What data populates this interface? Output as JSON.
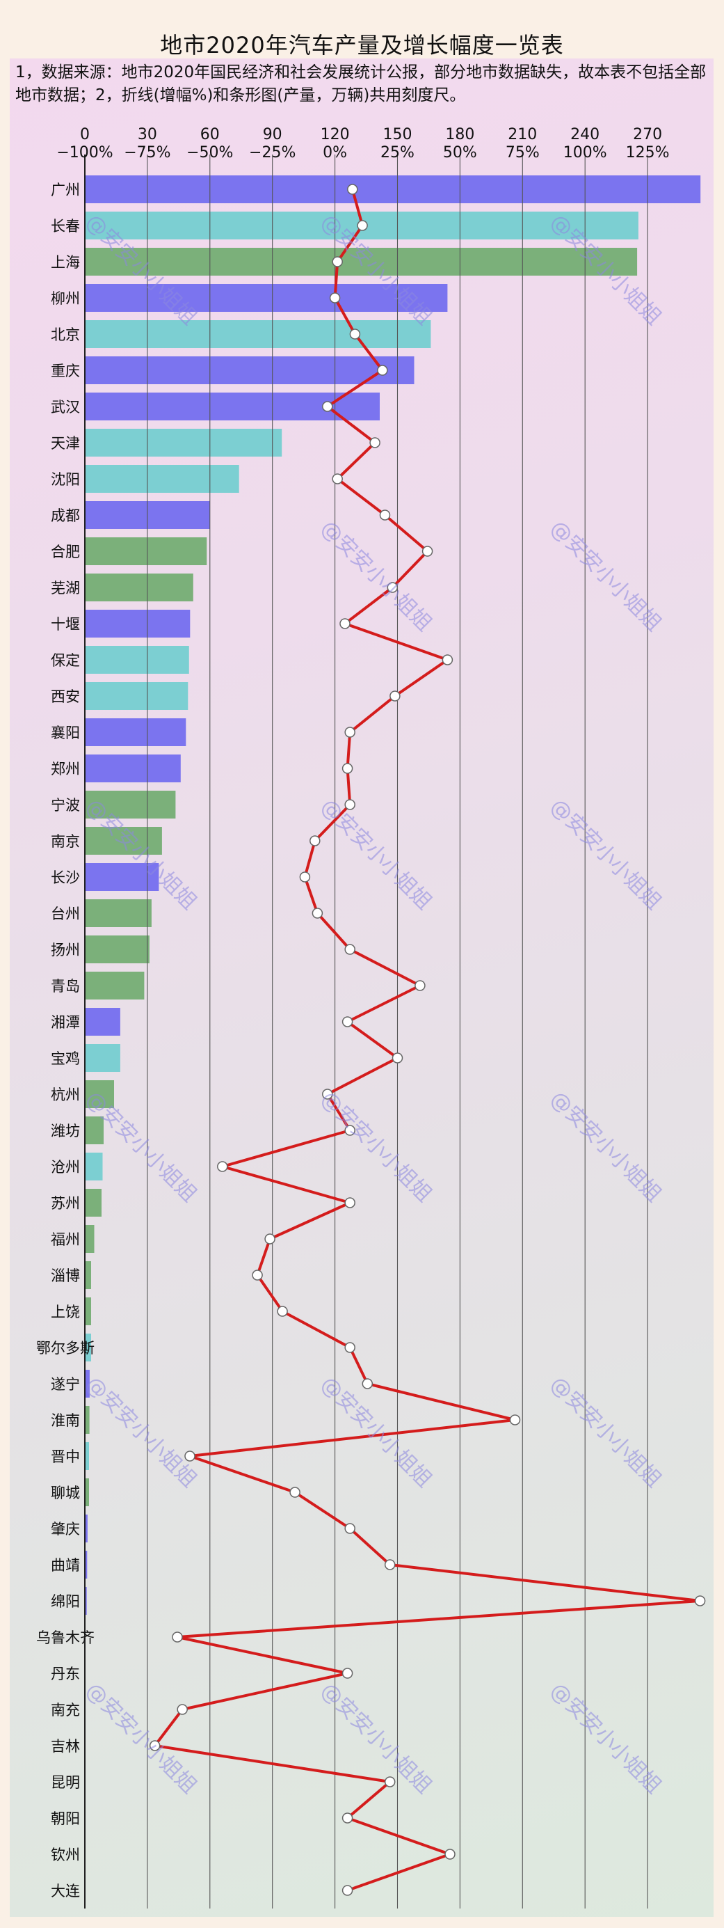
{
  "title": "地市2020年汽车产量及增长幅度一览表",
  "note": "1，数据来源：地市2020年国民经济和社会发展统计公报，部分地市数据缺失，故本表不包括全部地市数据；2，折线(增幅%)和条形图(产量，万辆)共用刻度尺。",
  "watermark": "@安安小小姐姐",
  "chart_data": {
    "type": "bar",
    "orientation": "horizontal",
    "x_production_ticks": [
      "0",
      "30",
      "60",
      "90",
      "120",
      "150",
      "180",
      "210",
      "240",
      "270"
    ],
    "x_growth_ticks": [
      "−100%",
      "−75%",
      "−50%",
      "−25%",
      "0%",
      "25%",
      "50%",
      "75%",
      "100%",
      "125%"
    ],
    "xlim_production": [
      0,
      295
    ],
    "grid": true,
    "colors": {
      "blue": "#7b74ef",
      "teal": "#7ccfd2",
      "green": "#7bb07a",
      "line": "#d41c1c"
    },
    "categories": [
      "广州",
      "长春",
      "上海",
      "柳州",
      "北京",
      "重庆",
      "武汉",
      "天津",
      "沈阳",
      "成都",
      "合肥",
      "芜湖",
      "十堰",
      "保定",
      "西安",
      "襄阳",
      "郑州",
      "宁波",
      "南京",
      "长沙",
      "台州",
      "扬州",
      "青岛",
      "湘潭",
      "宝鸡",
      "杭州",
      "潍坊",
      "沧州",
      "苏州",
      "福州",
      "淄博",
      "上饶",
      "鄂尔多斯",
      "遂宁",
      "淮南",
      "晋中",
      "聊城",
      "肇庆",
      "曲靖",
      "绵阳",
      "乌鲁木齐",
      "丹东",
      "南充",
      "吉林",
      "昆明",
      "朝阳",
      "钦州",
      "大连"
    ],
    "series": [
      {
        "values": [
          295.4,
          265.6,
          265.0,
          174.0,
          166.0,
          158.0,
          141.5,
          94.5,
          74.0,
          60.0,
          58.5,
          52.0,
          50.5,
          50.0,
          49.5,
          48.5,
          46.0,
          43.5,
          37.0,
          35.5,
          32.0,
          31.0,
          28.5,
          17.0,
          17.0,
          14.0,
          9.0,
          8.5,
          8.0,
          4.5,
          3.0,
          3.0,
          3.0,
          2.3,
          2.2,
          2.0,
          2.0,
          1.3,
          1.1,
          0.9,
          0,
          0,
          0,
          0,
          0,
          0,
          0,
          0
        ],
        "colors": [
          "blue",
          "teal",
          "green",
          "blue",
          "teal",
          "blue",
          "blue",
          "teal",
          "teal",
          "blue",
          "green",
          "green",
          "blue",
          "teal",
          "teal",
          "blue",
          "blue",
          "green",
          "green",
          "blue",
          "green",
          "green",
          "green",
          "blue",
          "teal",
          "green",
          "green",
          "teal",
          "green",
          "green",
          "green",
          "green",
          "teal",
          "blue",
          "green",
          "teal",
          "green",
          "blue",
          "blue",
          "blue",
          "blue",
          "blue",
          "blue",
          "blue",
          "blue",
          "blue",
          "blue",
          "blue"
        ]
      },
      {
        "type": "line",
        "values": [
          7,
          11,
          1,
          0,
          8,
          19,
          -3,
          16,
          1,
          20,
          37,
          23,
          4,
          45,
          24,
          6,
          5,
          6,
          -8,
          -12,
          -7,
          6,
          34,
          5,
          25,
          -3,
          6,
          -45,
          6,
          -26,
          -31,
          -21,
          6,
          13,
          72,
          -58,
          -16,
          6,
          22,
          146,
          -63,
          5,
          -61,
          -72,
          22,
          5,
          46,
          5
        ]
      }
    ]
  }
}
